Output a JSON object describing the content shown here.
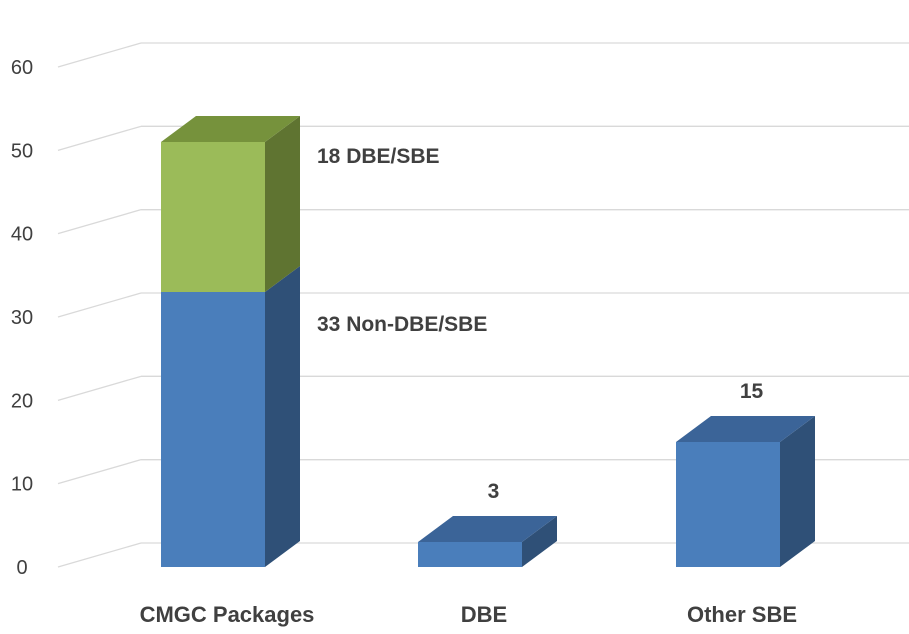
{
  "chart_data": {
    "type": "bar",
    "stacked": true,
    "three_d": true,
    "categories": [
      "CMGC Packages",
      "DBE",
      "Other SBE"
    ],
    "y_ticks": [
      "0",
      "10",
      "20",
      "30",
      "40",
      "50",
      "60"
    ],
    "ylim": [
      0,
      60
    ],
    "grid": true,
    "stack": {
      "category": "CMGC Packages",
      "segments": [
        {
          "value": 33,
          "label": "33 Non-DBE/SBE",
          "color": "#4A7EBB"
        },
        {
          "value": 18,
          "label": "18 DBE/SBE",
          "color": "#9BBB59"
        }
      ]
    },
    "bars": [
      {
        "category": "DBE",
        "value": 3,
        "label": "3",
        "color": "#4A7EBB"
      },
      {
        "category": "Other SBE",
        "value": 15,
        "label": "15",
        "color": "#4A7EBB"
      }
    ],
    "colors": {
      "blue_front": "#4A7EBB",
      "blue_side": "#2F5077",
      "blue_top": "#3B6498",
      "green_front": "#9BBB59",
      "green_side": "#5F7431",
      "green_top": "#76923C",
      "grid": "#D9D9D9",
      "text": "#404040"
    }
  }
}
